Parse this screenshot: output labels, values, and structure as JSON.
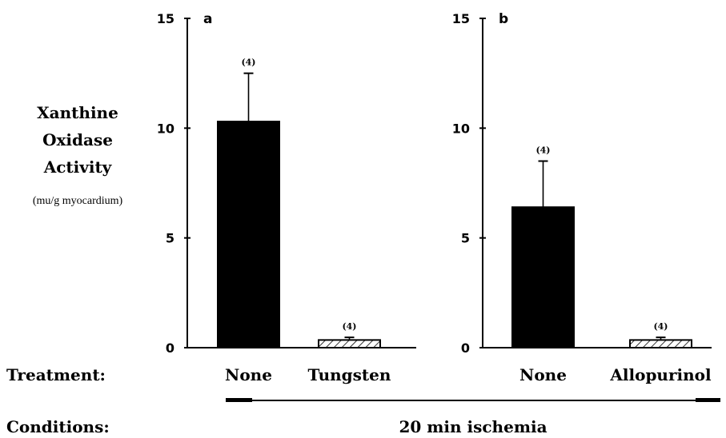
{
  "ylabel": {
    "line1": "Xanthine",
    "line2": "Oxidase",
    "line3": "Activity",
    "units": "(mu/g myocardium)"
  },
  "row_labels": {
    "treatment": "Treatment:",
    "conditions": "Conditions:"
  },
  "condition": "20 min ischemia",
  "chart_data": [
    {
      "type": "bar",
      "panel": "a",
      "categories": [
        "None",
        "Tungsten"
      ],
      "values": [
        10.3,
        0.35
      ],
      "errors": [
        2.2,
        0.12
      ],
      "n_labels": [
        "(4)",
        "(4)"
      ],
      "patterns": [
        "solid",
        "hatched"
      ],
      "ylim": [
        0,
        15
      ],
      "yticks": [
        "0",
        "5",
        "10",
        "15"
      ]
    },
    {
      "type": "bar",
      "panel": "b",
      "categories": [
        "None",
        "Allopurinol"
      ],
      "values": [
        6.4,
        0.35
      ],
      "errors": [
        2.1,
        0.12
      ],
      "n_labels": [
        "(4)",
        "(4)"
      ],
      "patterns": [
        "solid",
        "hatched"
      ],
      "ylim": [
        0,
        15
      ],
      "yticks": [
        "0",
        "5",
        "10",
        "15"
      ]
    }
  ]
}
